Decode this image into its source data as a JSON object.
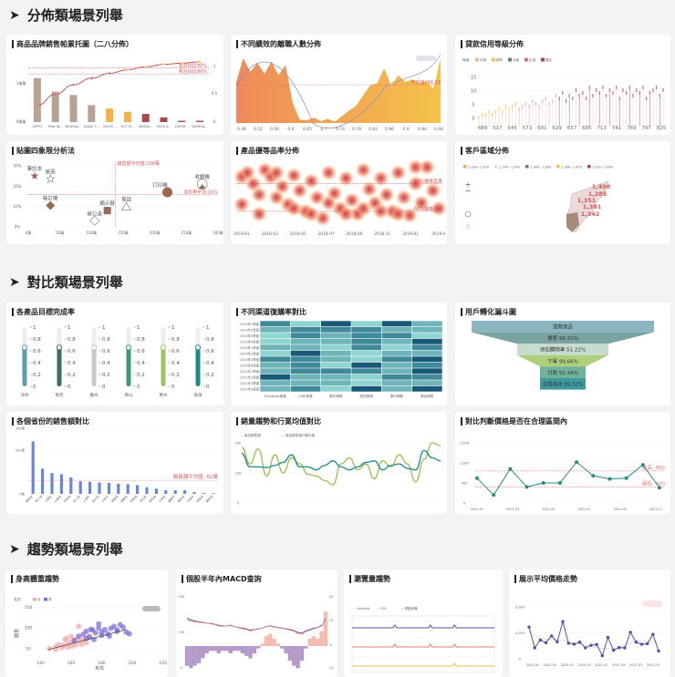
{
  "sections": [
    "分佈類場景列舉",
    "對比類場景列舉",
    "趨勢類場景列舉"
  ],
  "colors": {
    "bg": "#f2f3f5",
    "teal": "#2a8a86",
    "purple": "#5b4bab",
    "salmon": "#e0706a"
  },
  "cards": {
    "pareto": "商品品牌銷售帕累托圖（二八分佈）",
    "turnover": "不同績效的離職人數分佈",
    "loan": "貸款信用等級分佈",
    "quadrant": "貼圖四象限分析法",
    "quality": "產品優等品率分佈",
    "region": "客戶區域分佈",
    "gauge": "各產品目標完成率",
    "heatmap": "不同渠道復購率對比",
    "funnel": "用戶轉化漏斗圖",
    "province": "各個省份的銷售額對比",
    "salestrend": "銷量趨勢和行業均值對比",
    "pricerange": "對比判斷價格是否在合理區間內",
    "bodytrend": "身高體重趨勢",
    "macd": "個股半年內MACD查詢",
    "views": "瀏覽量趨勢",
    "avgprice": "展示平均價格走勢"
  },
  "chart_data": {
    "pareto": {
      "type": "bar",
      "categories": [
        "ZIPPO",
        "PAW IN...",
        "NEW BA...",
        "HANG T...",
        "SAOM...",
        "GCT M...",
        "WAGAJ...",
        "PAGE II...",
        "LEPOR...",
        "KZHIHA..."
      ],
      "values": [
        0.65,
        0.45,
        0.4,
        0.25,
        0.2,
        0.15,
        0.12,
        0.07,
        0.02,
        0.02
      ],
      "cumulative": [
        0.28,
        0.46,
        0.62,
        0.73,
        0.81,
        0.87,
        0.92,
        0.96,
        0.98,
        1.0
      ],
      "y_ticks": [
        "1億萬",
        "0億萬"
      ],
      "y2_ticks": [
        "1",
        "0.5",
        "0"
      ],
      "marklines": [
        "累計佔比90%",
        "累計佔比80%"
      ],
      "colors": [
        "#b8a296",
        "#b8a296",
        "#b8a296",
        "#b8a296",
        "#f3b34a",
        "#f3b34a",
        "#a94a4a",
        "#a94a4a",
        "#a94a4a",
        "#a94a4a"
      ]
    },
    "turnover": {
      "type": "area",
      "x_ticks": [
        "0.48",
        "0.52",
        "0.56",
        "0.6",
        "0.65",
        "0.7",
        "0.74",
        "0.78",
        "0.82",
        "0.86",
        "0.9",
        "0.94",
        "0.98"
      ],
      "values": [
        60,
        95,
        75,
        88,
        72,
        90,
        70,
        85,
        30,
        5,
        4,
        8,
        3,
        6,
        2,
        10,
        18,
        25,
        40,
        55,
        58,
        80,
        55,
        70,
        60,
        64,
        58,
        62,
        50,
        95
      ],
      "markline": "平均值: 56.13"
    },
    "loan": {
      "type": "candlestick",
      "legend_title": "等級",
      "legend": [
        "可疑",
        "損失",
        "次級",
        "正常",
        "關注"
      ],
      "legend_colors": [
        "#f0b8a8",
        "#f3c24a",
        "#777777",
        "#e07070",
        "#a94a4a"
      ],
      "x_ticks": [
        "489",
        "517",
        "545",
        "573",
        "601",
        "629",
        "657",
        "685",
        "713",
        "741",
        "769",
        "797",
        "825"
      ],
      "y_ticks": [
        "0",
        "5",
        "10",
        "15"
      ],
      "values": [
        1,
        2,
        2,
        3,
        2,
        3,
        4,
        3,
        5,
        4,
        5,
        6,
        4,
        5,
        6,
        5,
        7,
        6,
        5,
        7,
        8,
        6,
        7,
        9,
        8,
        10,
        7,
        9,
        8,
        11,
        9,
        10,
        8,
        12,
        9,
        11,
        10,
        12,
        9,
        11,
        10,
        12,
        8,
        11,
        10,
        12,
        9,
        11,
        10,
        12,
        8,
        10,
        11,
        12,
        9,
        11
      ]
    },
    "quadrant": {
      "type": "scatter",
      "x_ticks": [
        "0萬",
        "50萬",
        "100萬",
        "150萬",
        "200萬",
        "250萬",
        "300萬"
      ],
      "y_ticks": [
        "0%",
        "10%",
        "20%",
        "30%"
      ],
      "points": [
        {
          "label": "筆記本",
          "x": 10,
          "y": 25,
          "shape": "star",
          "fill": true
        },
        {
          "label": "紙張",
          "x": 35,
          "y": 23.5,
          "shape": "star",
          "fill": false
        },
        {
          "label": "裝訂機",
          "x": 35,
          "y": 10.5,
          "shape": "diamond",
          "fill": true
        },
        {
          "label": "辦公桌",
          "x": 105,
          "y": 3,
          "shape": "diamond",
          "fill": false
        },
        {
          "label": "顯示器",
          "x": 125,
          "y": 8,
          "shape": "square",
          "fill": true
        },
        {
          "label": "電話",
          "x": 155,
          "y": 10,
          "shape": "triangle",
          "fill": false
        },
        {
          "label": "打印機",
          "x": 220,
          "y": 17,
          "shape": "circle",
          "fill": true
        },
        {
          "label": "收銀機",
          "x": 275,
          "y": 21,
          "shape": "circle",
          "fill": false
        }
      ],
      "marklines": [
        "銷售額平均值:138萬",
        "毛利率平均:16%"
      ],
      "avg_x": 138,
      "avg_y": 16
    },
    "quality": {
      "type": "scatter",
      "x_ticks": [
        "2018-01",
        "2018-03",
        "2018-05",
        "2018-07",
        "2018-09",
        "2018-11",
        "2019-01",
        "2019-0"
      ],
      "marklines": [
        "80%優等品率",
        "60%優等品率"
      ],
      "points": [
        [
          0,
          85
        ],
        [
          1,
          88
        ],
        [
          2,
          80
        ],
        [
          3,
          72
        ],
        [
          4,
          90
        ],
        [
          5,
          85
        ],
        [
          6,
          70
        ],
        [
          7,
          78
        ],
        [
          8,
          65
        ],
        [
          9,
          86
        ],
        [
          10,
          75
        ],
        [
          11,
          60
        ],
        [
          12,
          82
        ],
        [
          13,
          70
        ],
        [
          14,
          55
        ],
        [
          15,
          88
        ],
        [
          16,
          73
        ],
        [
          17,
          62
        ],
        [
          18,
          84
        ],
        [
          19,
          68
        ],
        [
          20,
          58
        ],
        [
          21,
          90
        ],
        [
          22,
          76
        ],
        [
          23,
          66
        ],
        [
          24,
          84
        ],
        [
          25,
          72
        ],
        [
          26,
          60
        ],
        [
          27,
          88
        ],
        [
          28,
          70
        ],
        [
          29,
          57
        ],
        [
          30,
          80
        ],
        [
          31,
          66
        ],
        [
          32,
          92
        ],
        [
          33,
          75
        ],
        [
          34,
          62
        ],
        [
          0,
          65
        ],
        [
          3,
          58
        ],
        [
          6,
          88
        ],
        [
          9,
          62
        ],
        [
          12,
          58
        ],
        [
          15,
          66
        ],
        [
          18,
          58
        ],
        [
          21,
          62
        ],
        [
          24,
          60
        ],
        [
          27,
          58
        ],
        [
          30,
          92
        ]
      ]
    },
    "region": {
      "type": "map",
      "legend": [
        "1,260~1,300",
        "1,300~1,340",
        "1,340~1,380",
        "1,380~1,420",
        "1,420~1,460"
      ],
      "legend_colors": [
        "#f0a860",
        "#f4d8d0",
        "#777777",
        "#f3c24a",
        "#a94a4a"
      ],
      "labels": [
        "1,498",
        "1,285",
        "1,351",
        "1,381",
        "1,342"
      ]
    },
    "gauge": {
      "type": "gauge",
      "labels": [
        "深圳",
        "東莞",
        "廣州",
        "佛山",
        "惠州",
        "珠海"
      ],
      "values": [
        0.82,
        0.82,
        0.82,
        0.82,
        0.82,
        0.82
      ],
      "colors": [
        "#5a9eaa",
        "#3b6e62",
        "#c9c9c0",
        "#3f9a78",
        "#9bc462",
        "#1e8a8a"
      ],
      "ticks": [
        "1",
        "0.8",
        "0.6",
        "0.4",
        "0.2",
        "0"
      ]
    },
    "heatmap": {
      "type": "heatmap",
      "rows": [
        "2019年1季度",
        "2019年2季度",
        "2019年3季度",
        "2019年4季度",
        "2020年1季度",
        "2020年2季度",
        "2020年3季度",
        "2020年4季度",
        "2021年1季度",
        "2021年2季度",
        "2021年3季度",
        "2021年4季度"
      ],
      "cols": [
        "Facebook推廣",
        "LINE推廣",
        "郵件營銷",
        "短信營銷",
        "銀行網點",
        "電話銷售"
      ],
      "values": [
        [
          3,
          1,
          4,
          1,
          4,
          2
        ],
        [
          2,
          3,
          3,
          3,
          2,
          2
        ],
        [
          1,
          3,
          2,
          3,
          3,
          1
        ],
        [
          1,
          2,
          2,
          3,
          2,
          4
        ],
        [
          2,
          2,
          1,
          3,
          1,
          3
        ],
        [
          1,
          4,
          2,
          1,
          2,
          2
        ],
        [
          3,
          3,
          2,
          1,
          3,
          4
        ],
        [
          2,
          3,
          1,
          4,
          2,
          3
        ],
        [
          2,
          3,
          3,
          3,
          2,
          4
        ],
        [
          4,
          2,
          2,
          1,
          3,
          3
        ],
        [
          2,
          2,
          2,
          1,
          2,
          2
        ],
        [
          2,
          3,
          1,
          4,
          2,
          4
        ]
      ]
    },
    "funnel": {
      "type": "funnel",
      "stages": [
        {
          "label": "瀏覽商品",
          "value": ""
        },
        {
          "label": "搜索",
          "value": "99.31%"
        },
        {
          "label": "添加購物車",
          "value": "51.22%"
        },
        {
          "label": "下單",
          "value": "99.66%"
        },
        {
          "label": "付款",
          "value": "50.34%"
        },
        {
          "label": "交易成功",
          "value": "99.32%"
        }
      ],
      "colors": [
        "#8bb6c0",
        "#7aa2a0",
        "#c6dccd",
        "#aed07a",
        "#6fb49a",
        "#3f9aa0"
      ]
    },
    "province": {
      "type": "bar",
      "y_ticks": [
        "0萬",
        "200萬",
        "300萬"
      ],
      "categories": [
        "廣東省",
        "浙江省",
        "江蘇省",
        "山東省",
        "河南省",
        "四川省",
        "上海市",
        "湖北省",
        "北京市",
        "湖南省",
        "福建省",
        "安徽省",
        "河北省",
        "陝西省",
        "江西省",
        "重慶市",
        "遼寧省",
        "天津市",
        "雲南省",
        "廣西省"
      ],
      "values": [
        240,
        115,
        95,
        90,
        75,
        58,
        55,
        52,
        50,
        46,
        44,
        40,
        30,
        24,
        16,
        16,
        16,
        8,
        4,
        3
      ],
      "markline": "銷售額平均值: 62萬",
      "avg": 62
    },
    "salestrend": {
      "type": "line",
      "legend": [
        "商品銷售額",
        "商品銷售額行業均值"
      ],
      "y_ticks": [
        "0",
        "100",
        "200"
      ],
      "series": [
        {
          "values": [
            185,
            130,
            180,
            90,
            160,
            100,
            150,
            130,
            95,
            90,
            75,
            60,
            130,
            150,
            110,
            130,
            80,
            140,
            120,
            160,
            130,
            70,
            145,
            200,
            190
          ]
        },
        {
          "values": [
            165,
            120,
            120,
            118,
            125,
            135,
            160,
            120,
            120,
            110,
            125,
            140,
            120,
            110,
            120,
            135,
            140,
            110,
            125,
            130,
            115,
            110,
            175,
            150,
            140
          ]
        }
      ]
    },
    "pricerange": {
      "type": "line",
      "y_ticks": [
        "0",
        "500",
        "1,000",
        "1,500"
      ],
      "x_ticks": [
        "2021-01",
        "2021-03",
        "2021-05",
        "2021-07",
        "2021-09",
        "2021-11"
      ],
      "values": [
        620,
        200,
        850,
        400,
        500,
        500,
        1020,
        680,
        600,
        620,
        950,
        380
      ],
      "marklines": [
        "最高: 800",
        "最低: 400"
      ],
      "max": 800,
      "min": 400
    },
    "bodytrend": {
      "type": "scatter",
      "legend_title": "性別",
      "legend": [
        "女",
        "男"
      ],
      "x_ticks": [
        "140",
        "160",
        "180",
        "200",
        "220"
      ],
      "y_ticks": [
        "50",
        "100",
        "150"
      ],
      "xlabel": "身高",
      "ylabel": "體重",
      "female": [
        [
          146,
          50
        ],
        [
          150,
          55
        ],
        [
          152,
          60
        ],
        [
          155,
          58
        ],
        [
          156,
          72
        ],
        [
          158,
          62
        ],
        [
          160,
          66
        ],
        [
          162,
          70
        ],
        [
          164,
          75
        ],
        [
          165,
          104
        ],
        [
          163,
          60
        ],
        [
          150,
          48
        ],
        [
          154,
          52
        ],
        [
          158,
          54
        ],
        [
          160,
          80
        ],
        [
          166,
          68
        ],
        [
          168,
          72
        ],
        [
          170,
          65
        ],
        [
          172,
          80
        ],
        [
          157,
          75
        ],
        [
          161,
          57
        ],
        [
          167,
          60
        ]
      ],
      "male": [
        [
          162,
          70
        ],
        [
          165,
          80
        ],
        [
          168,
          85
        ],
        [
          170,
          92
        ],
        [
          172,
          78
        ],
        [
          174,
          95
        ],
        [
          176,
          88
        ],
        [
          178,
          100
        ],
        [
          178,
          110
        ],
        [
          180,
          90
        ],
        [
          182,
          96
        ],
        [
          184,
          86
        ],
        [
          186,
          99
        ],
        [
          188,
          104
        ],
        [
          190,
          92
        ],
        [
          192,
          108
        ],
        [
          194,
          102
        ],
        [
          196,
          90
        ],
        [
          198,
          86
        ],
        [
          175,
          72
        ],
        [
          185,
          80
        ],
        [
          170,
          75
        ],
        [
          180,
          82
        ],
        [
          190,
          95
        ],
        [
          173,
          97
        ]
      ]
    },
    "macd": {
      "type": "line",
      "y_ticks": [
        "0",
        "100",
        "200"
      ],
      "y2_ticks": [
        "-10",
        "0",
        "10",
        "20"
      ],
      "line1": [
        140,
        135,
        132,
        130,
        128,
        126,
        125,
        123,
        120,
        118,
        118,
        120,
        116,
        114,
        112,
        110,
        106,
        108,
        110,
        112,
        116,
        118,
        116,
        114,
        112,
        110,
        108,
        105,
        100,
        98,
        104,
        108,
        112,
        114,
        120,
        135
      ],
      "line2": [
        135,
        132,
        130,
        128,
        127,
        126,
        124,
        122,
        118,
        117,
        118,
        119,
        116,
        113,
        110,
        108,
        104,
        107,
        109,
        112,
        117,
        117,
        115,
        113,
        111,
        109,
        106,
        103,
        97,
        95,
        102,
        106,
        110,
        113,
        118,
        140
      ],
      "hist": [
        -8,
        -9,
        -8,
        -7,
        -5,
        -3,
        -2,
        -2,
        -3,
        -2,
        -2,
        -3,
        -2,
        -2,
        -3,
        -4,
        -5,
        -3,
        -1,
        1,
        4,
        5,
        3,
        1,
        -1,
        -3,
        -6,
        -8,
        -9,
        -6,
        -1,
        3,
        4,
        3,
        6,
        14
      ]
    },
    "views": {
      "type": "line",
      "legend": [
        "Android",
        "IOS",
        "移動設備"
      ],
      "colors": [
        "#5b4bab",
        "#e07878",
        "#e8c040"
      ],
      "spikes": [
        [
          0.3,
          0.55,
          0.72
        ],
        [
          0.3,
          0.55,
          0.72
        ],
        [
          0.72
        ]
      ]
    },
    "avgprice": {
      "type": "line",
      "y_ticks": [
        "0",
        "1,000",
        "2,000"
      ],
      "x_ticks": [
        "2020-01",
        "2020-04",
        "2020-07",
        "2020-10",
        "2021-01",
        "2021-04",
        "2021-07",
        "2021-10"
      ],
      "values": [
        1220,
        420,
        720,
        620,
        880,
        650,
        1430,
        600,
        560,
        640,
        420,
        520,
        550,
        120,
        820,
        330,
        430,
        420,
        1020,
        640,
        560,
        580,
        940,
        300
      ],
      "trend": [
        1000,
        900,
        800,
        760,
        740,
        720,
        700,
        660,
        620,
        580,
        520,
        470,
        430,
        400,
        390,
        400,
        440,
        500,
        600,
        680,
        700,
        690,
        660,
        620
      ]
    }
  }
}
